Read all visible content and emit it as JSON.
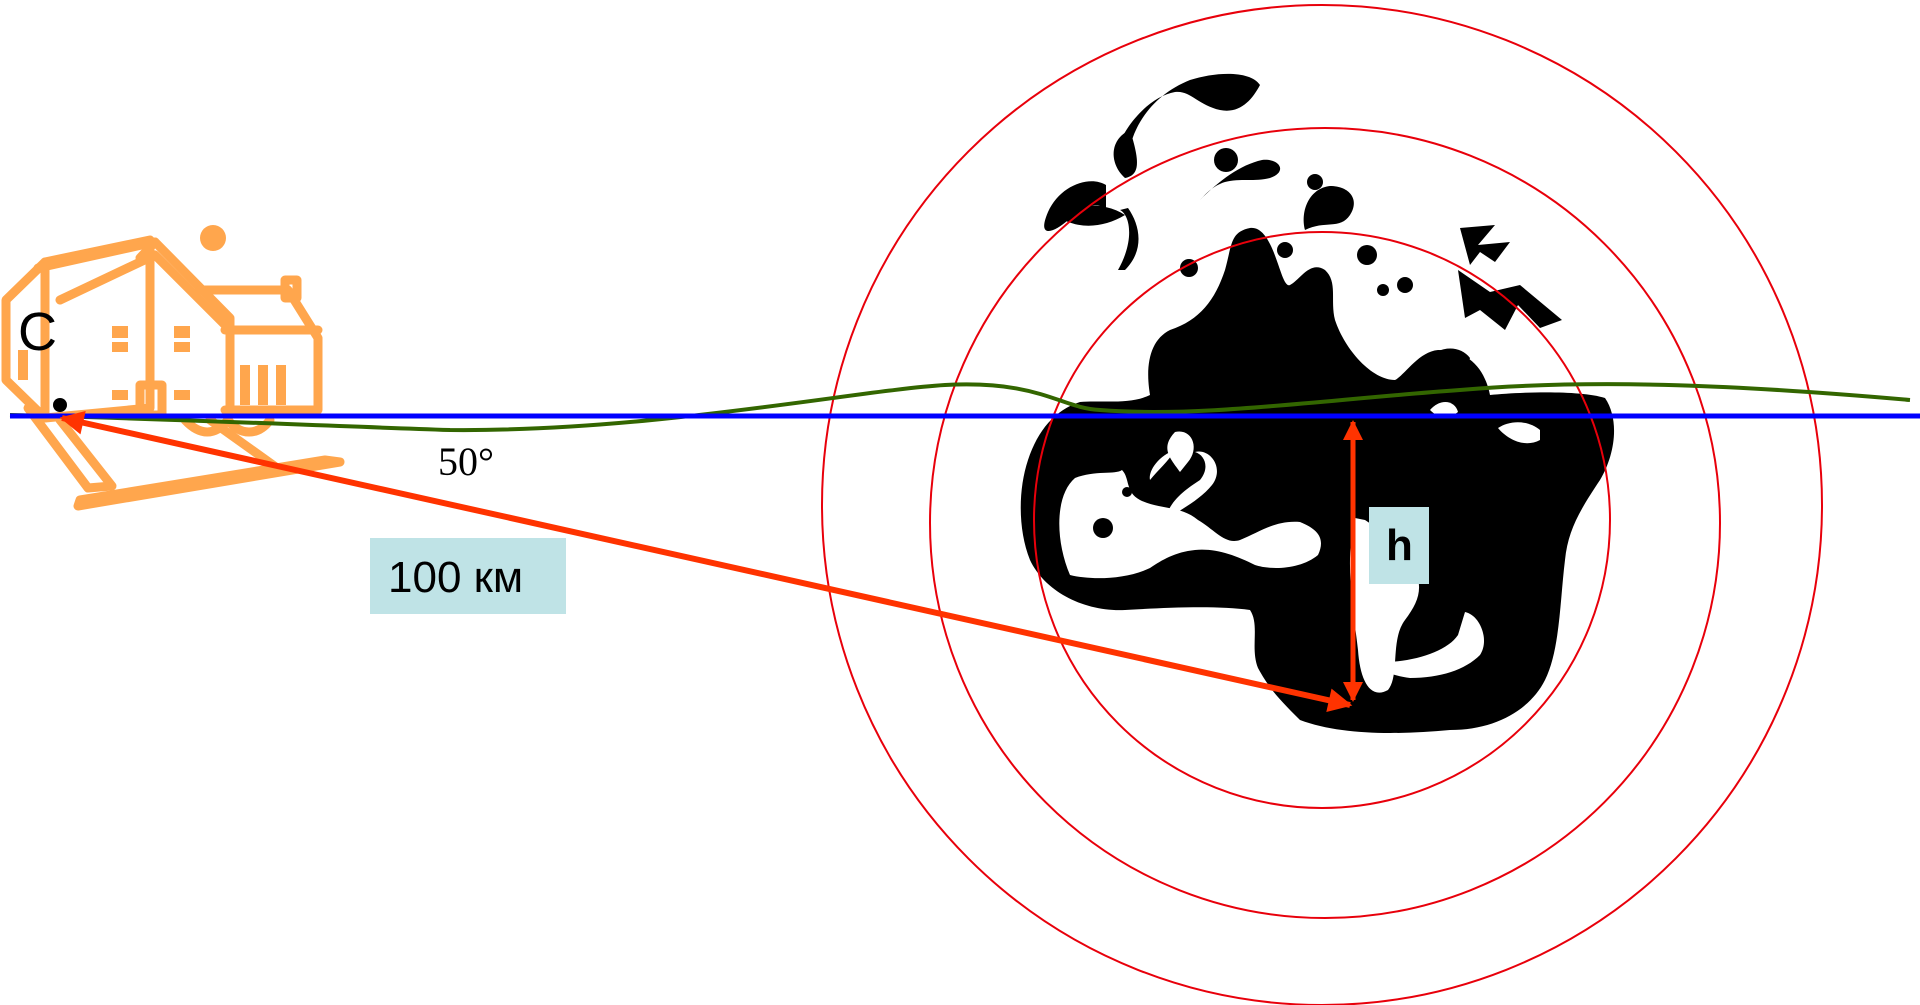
{
  "labels": {
    "station": "С",
    "angle": "50°",
    "distance": "100 км",
    "depth": "h"
  },
  "icons": {
    "station": "house-icon",
    "source": "explosion-icon"
  },
  "colors": {
    "house": "#FFA64D",
    "blast": "#000000",
    "wave_circles": "#E8000B",
    "horizon_line": "#0000FF",
    "surface_line": "#336600",
    "arrows": "#FF3300",
    "label_bg": "#BFE3E6"
  }
}
